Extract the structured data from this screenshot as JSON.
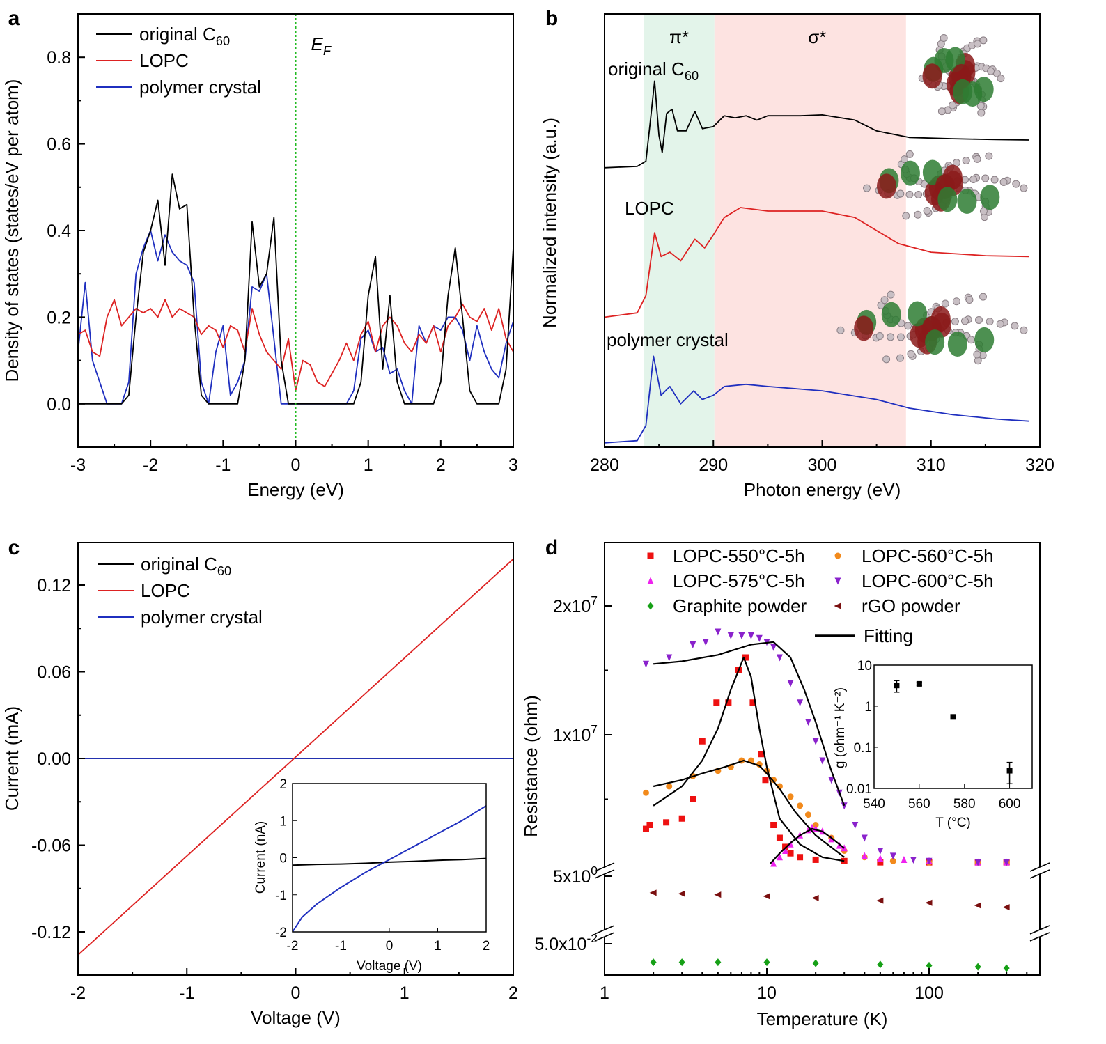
{
  "chart_data": [
    {
      "panel": "a",
      "type": "line",
      "xlabel": "Energy (eV)",
      "ylabel": "Density of states (states/eV per atom)",
      "xlim": [
        -3,
        3
      ],
      "ylim": [
        -0.1,
        0.9
      ],
      "xticks": [
        -3,
        -2,
        -1,
        0,
        1,
        2,
        3
      ],
      "yticks": [
        0.0,
        0.2,
        0.4,
        0.6,
        0.8
      ],
      "annotation": {
        "text": "E",
        "sub": "F",
        "x": 0
      },
      "fermi_line_color": "#22bb22",
      "legend_position": "top-left",
      "x": [
        -3.0,
        -2.9,
        -2.8,
        -2.7,
        -2.6,
        -2.5,
        -2.4,
        -2.3,
        -2.2,
        -2.1,
        -2.0,
        -1.9,
        -1.8,
        -1.7,
        -1.6,
        -1.5,
        -1.4,
        -1.3,
        -1.2,
        -1.1,
        -1.0,
        -0.9,
        -0.8,
        -0.7,
        -0.6,
        -0.5,
        -0.4,
        -0.3,
        -0.2,
        -0.1,
        0.0,
        0.1,
        0.2,
        0.3,
        0.4,
        0.5,
        0.6,
        0.7,
        0.8,
        0.9,
        1.0,
        1.1,
        1.2,
        1.3,
        1.4,
        1.5,
        1.6,
        1.7,
        1.8,
        1.9,
        2.0,
        2.1,
        2.2,
        2.3,
        2.4,
        2.5,
        2.6,
        2.7,
        2.8,
        2.9,
        3.0
      ],
      "series": [
        {
          "name": "original C",
          "sub": "60",
          "color": "#000000",
          "values": [
            0,
            0,
            0,
            0,
            0,
            0,
            0,
            0.02,
            0.2,
            0.35,
            0.4,
            0.47,
            0.32,
            0.53,
            0.45,
            0.46,
            0.2,
            0.02,
            0,
            0,
            0,
            0,
            0,
            0.1,
            0.42,
            0.27,
            0.3,
            0.43,
            0.1,
            0,
            0,
            0,
            0,
            0,
            0,
            0,
            0,
            0,
            0,
            0.05,
            0.25,
            0.34,
            0.08,
            0.25,
            0.05,
            0,
            0,
            0,
            0,
            0,
            0.05,
            0.25,
            0.36,
            0.2,
            0.03,
            0,
            0,
            0,
            0,
            0.08,
            0.36
          ]
        },
        {
          "name": "LOPC",
          "color": "#dd2222",
          "values": [
            0.16,
            0.17,
            0.12,
            0.11,
            0.2,
            0.24,
            0.18,
            0.2,
            0.22,
            0.21,
            0.22,
            0.2,
            0.24,
            0.2,
            0.22,
            0.21,
            0.2,
            0.16,
            0.18,
            0.17,
            0.13,
            0.18,
            0.17,
            0.12,
            0.22,
            0.16,
            0.12,
            0.1,
            0.08,
            0.15,
            0.03,
            0.1,
            0.09,
            0.05,
            0.04,
            0.07,
            0.1,
            0.14,
            0.1,
            0.16,
            0.19,
            0.12,
            0.18,
            0.2,
            0.18,
            0.14,
            0.12,
            0.16,
            0.14,
            0.18,
            0.12,
            0.18,
            0.2,
            0.23,
            0.2,
            0.19,
            0.22,
            0.17,
            0.22,
            0.15,
            0.12
          ]
        },
        {
          "name": "polymer crystal",
          "color": "#1f2fbf",
          "values": [
            0.12,
            0.28,
            0.1,
            0.05,
            0,
            0,
            0,
            0.05,
            0.3,
            0.36,
            0.4,
            0.33,
            0.39,
            0.35,
            0.33,
            0.32,
            0.28,
            0.05,
            0,
            0.12,
            0.18,
            0.02,
            0.05,
            0.1,
            0.27,
            0.26,
            0.3,
            0.15,
            0,
            0,
            0,
            0,
            0,
            0,
            0,
            0,
            0,
            0,
            0.03,
            0.15,
            0.17,
            0.12,
            0.13,
            0.07,
            0.08,
            0.03,
            0,
            0.18,
            0.14,
            0.18,
            0.17,
            0.2,
            0.2,
            0.17,
            0.1,
            0.18,
            0.12,
            0.08,
            0.06,
            0.14,
            0.19
          ]
        }
      ]
    },
    {
      "panel": "b",
      "type": "line",
      "xlabel": "Photon energy (eV)",
      "ylabel": "Normalized intensity (a.u.)",
      "xlim": [
        280,
        320
      ],
      "xticks": [
        280,
        290,
        300,
        310,
        320
      ],
      "yticks": [],
      "regions": [
        {
          "label": "π*",
          "from": 283.6,
          "to": 290.1,
          "color": "#e3f4ea"
        },
        {
          "label": "σ*",
          "from": 290.1,
          "to": 307.7,
          "color": "#fde3e1"
        }
      ],
      "series": [
        {
          "name": "original C",
          "sub": "60",
          "color": "#000000",
          "x": [
            280,
            283,
            283.8,
            284.2,
            284.6,
            285,
            285.3,
            285.7,
            286.2,
            286.7,
            287.5,
            288.3,
            289,
            290,
            291,
            292,
            293,
            294,
            295,
            298,
            300,
            303,
            305,
            308,
            312,
            316,
            319
          ],
          "values": [
            0.645,
            0.648,
            0.66,
            0.75,
            0.845,
            0.72,
            0.68,
            0.77,
            0.78,
            0.73,
            0.73,
            0.775,
            0.735,
            0.74,
            0.765,
            0.76,
            0.765,
            0.755,
            0.765,
            0.765,
            0.767,
            0.755,
            0.73,
            0.715,
            0.712,
            0.71,
            0.709
          ]
        },
        {
          "name": "LOPC",
          "color": "#dd2222",
          "x": [
            280,
            283,
            283.8,
            284.6,
            285.2,
            286,
            287,
            288.3,
            289.2,
            290,
            291,
            292.5,
            295,
            300,
            303,
            305,
            307,
            310,
            315,
            319
          ],
          "values": [
            0.3,
            0.31,
            0.35,
            0.495,
            0.44,
            0.45,
            0.43,
            0.48,
            0.46,
            0.49,
            0.53,
            0.553,
            0.545,
            0.545,
            0.53,
            0.5,
            0.47,
            0.45,
            0.442,
            0.44
          ]
        },
        {
          "name": "polymer crystal",
          "color": "#1f2fbf",
          "x": [
            280,
            283,
            283.8,
            284.5,
            285.2,
            286,
            287,
            288.2,
            289,
            290,
            291,
            293,
            295,
            300,
            305,
            308,
            312,
            316,
            319
          ],
          "values": [
            0.01,
            0.015,
            0.05,
            0.21,
            0.12,
            0.14,
            0.1,
            0.13,
            0.11,
            0.12,
            0.14,
            0.145,
            0.14,
            0.13,
            0.11,
            0.09,
            0.075,
            0.065,
            0.06
          ]
        }
      ]
    },
    {
      "panel": "c",
      "type": "line",
      "xlabel": "Voltage (V)",
      "ylabel": "Current (mA)",
      "xlim": [
        -2,
        2
      ],
      "ylim": [
        -0.15,
        0.15
      ],
      "xticks": [
        -2,
        -1,
        0,
        1,
        2
      ],
      "yticks": [
        -0.12,
        -0.06,
        0.0,
        0.06,
        0.12
      ],
      "ytick_labels": [
        "-0.12",
        "-0.06",
        "0.00",
        "0.06",
        "0.12"
      ],
      "legend_position": "top-left",
      "series": [
        {
          "name": "original C",
          "sub": "60",
          "color": "#000000",
          "x": [
            -2,
            2
          ],
          "values": [
            0,
            0
          ]
        },
        {
          "name": "LOPC",
          "color": "#dd2222",
          "x": [
            -2,
            2
          ],
          "values": [
            -0.136,
            0.138
          ]
        },
        {
          "name": "polymer crystal",
          "color": "#1f2fbf",
          "x": [
            -2,
            2
          ],
          "values": [
            0,
            0
          ]
        }
      ],
      "inset": {
        "type": "line",
        "xlabel": "Voltage (V)",
        "ylabel": "Current (nA)",
        "xlim": [
          -2,
          2
        ],
        "ylim": [
          -2,
          2
        ],
        "xticks": [
          -2,
          -1,
          0,
          1,
          2
        ],
        "yticks": [
          -2,
          -1,
          0,
          1,
          2
        ],
        "series": [
          {
            "color": "#000000",
            "x": [
              -2,
              -1.5,
              -1,
              -0.5,
              0,
              0.5,
              1,
              1.5,
              2
            ],
            "values": [
              -0.2,
              -0.18,
              -0.17,
              -0.15,
              -0.12,
              -0.1,
              -0.07,
              -0.05,
              -0.02
            ]
          },
          {
            "color": "#1f2fbf",
            "x": [
              -2,
              -1.8,
              -1.5,
              -1,
              -0.5,
              0,
              0.5,
              1,
              1.5,
              2
            ],
            "values": [
              -2,
              -1.6,
              -1.25,
              -0.8,
              -0.4,
              -0.05,
              0.3,
              0.65,
              1.0,
              1.4
            ]
          }
        ]
      }
    },
    {
      "panel": "d",
      "type": "scatter",
      "xlabel": "Temperature (K)",
      "ylabel": "Resistance (ohm)",
      "xscale": "log",
      "xlim": [
        1,
        480
      ],
      "xticks": [
        1,
        10,
        100
      ],
      "yaxis": "broken",
      "ytick_labels": [
        {
          "m": "2x10",
          "e": "7"
        },
        {
          "m": "1x10",
          "e": "7"
        },
        {
          "m": "5x10",
          "e": "0"
        },
        {
          "m": "5.0x10",
          "e": "-2"
        }
      ],
      "legend_position": "top",
      "fit_label": "Fitting",
      "series": [
        {
          "name": "LOPC-550°C-5h",
          "marker": "square",
          "color": "#ee1111",
          "x": [
            1.8,
            1.9,
            2.4,
            3,
            3.5,
            4,
            4.9,
            5.8,
            6.7,
            7.4,
            8.2,
            9.2,
            9.8,
            11,
            12,
            13,
            14,
            16,
            20,
            30,
            50,
            100,
            200,
            300
          ],
          "values": [
            0.27,
            0.3,
            0.32,
            0.35,
            0.5,
            0.95,
            1.25,
            1.25,
            1.5,
            1.6,
            1.25,
            0.85,
            0.65,
            0.3,
            0.2,
            0.13,
            0.08,
            0.05,
            0.03,
            0.02,
            0.01,
            0.01,
            0.01,
            0.01
          ]
        },
        {
          "name": "LOPC-560°C-5h",
          "marker": "circle",
          "color": "#f28a1c",
          "x": [
            1.8,
            2.5,
            3.5,
            5,
            6,
            7,
            8,
            9,
            10,
            11,
            12,
            14,
            16,
            18,
            20,
            25,
            30,
            40,
            60,
            100,
            200,
            300
          ],
          "values": [
            0.55,
            0.6,
            0.68,
            0.72,
            0.75,
            0.8,
            0.8,
            0.77,
            0.72,
            0.65,
            0.6,
            0.52,
            0.45,
            0.38,
            0.3,
            0.2,
            0.1,
            0.05,
            0.02,
            0.01,
            0.01,
            0.01
          ]
        },
        {
          "name": "LOPC-575°C-5h",
          "marker": "triangle-up",
          "color": "#ee22ee",
          "x": [
            11,
            12,
            13,
            14,
            16,
            18,
            19,
            20,
            22,
            25,
            28,
            30,
            40,
            50,
            70,
            100,
            200,
            300
          ],
          "values": [
            0.0,
            0.05,
            0.1,
            0.15,
            0.22,
            0.26,
            0.28,
            0.27,
            0.25,
            0.19,
            0.14,
            0.12,
            0.06,
            0.04,
            0.03,
            0.02,
            0.01,
            0.01
          ]
        },
        {
          "name": "LOPC-600°C-5h",
          "marker": "triangle-down",
          "color": "#8a22cc",
          "x": [
            1.8,
            2.5,
            3.5,
            4.2,
            5,
            6,
            7,
            8,
            9,
            10,
            11,
            12,
            14,
            16,
            18,
            20,
            22,
            25,
            28,
            30,
            35,
            40,
            50,
            60,
            80,
            100,
            200,
            300
          ],
          "values": [
            1.55,
            1.6,
            1.7,
            1.72,
            1.8,
            1.77,
            1.77,
            1.77,
            1.75,
            1.72,
            1.68,
            1.6,
            1.4,
            1.25,
            1.1,
            0.95,
            0.8,
            0.65,
            0.55,
            0.45,
            0.3,
            0.2,
            0.1,
            0.06,
            0.03,
            0.02,
            0.01,
            0.01
          ]
        },
        {
          "name": "Graphite powder",
          "marker": "diamond",
          "color": "#16a016",
          "segment": "lower",
          "x": [
            2,
            3,
            5,
            10,
            20,
            50,
            100,
            200,
            300
          ],
          "values": [
            0.018,
            0.018,
            0.018,
            0.018,
            0.017,
            0.016,
            0.015,
            0.014,
            0.013
          ]
        },
        {
          "name": "rGO powder",
          "marker": "triangle-left",
          "color": "#7a0f0f",
          "segment": "middle",
          "x": [
            2,
            3,
            5,
            10,
            20,
            50,
            100,
            200,
            300
          ],
          "values": [
            2.0,
            1.9,
            1.8,
            1.65,
            1.5,
            1.3,
            1.15,
            1.0,
            0.9
          ]
        }
      ],
      "fits": [
        {
          "for": "LOPC-600°C-5h",
          "x": [
            2,
            3,
            5,
            8,
            11,
            14,
            17,
            20,
            25,
            30
          ],
          "values": [
            1.55,
            1.57,
            1.62,
            1.7,
            1.72,
            1.6,
            1.35,
            1.1,
            0.72,
            0.45
          ]
        },
        {
          "for": "LOPC-550°C-5h",
          "x": [
            2,
            3,
            4,
            5,
            6,
            7.2,
            8,
            9,
            10,
            12,
            16,
            22,
            30
          ],
          "values": [
            0.45,
            0.6,
            0.8,
            1.05,
            1.35,
            1.6,
            1.45,
            1.05,
            0.75,
            0.35,
            0.15,
            0.05,
            0.02
          ]
        },
        {
          "for": "LOPC-560°C-5h",
          "x": [
            2,
            3,
            4,
            5.5,
            7.2,
            9,
            10,
            12,
            15,
            20,
            30
          ],
          "values": [
            0.6,
            0.65,
            0.7,
            0.75,
            0.8,
            0.76,
            0.7,
            0.58,
            0.4,
            0.22,
            0.05
          ]
        },
        {
          "for": "LOPC-575°C-5h",
          "x": [
            10.5,
            12,
            14,
            16,
            19,
            22,
            25,
            30
          ],
          "values": [
            0.0,
            0.08,
            0.16,
            0.22,
            0.27,
            0.25,
            0.2,
            0.12
          ]
        }
      ],
      "inset": {
        "type": "scatter",
        "xlabel": "T (°C)",
        "ylabel": "g (ohm⁻¹ K⁻²)",
        "xlim": [
          540,
          610
        ],
        "ylim": [
          0.01,
          10
        ],
        "yscale": "log",
        "xticks": [
          540,
          560,
          580,
          600
        ],
        "yticks": [
          0.01,
          0.1,
          1,
          10
        ],
        "ytick_labels": [
          "0.01",
          "0.1",
          "1",
          "10"
        ],
        "points": [
          {
            "x": 550,
            "y": 3.2,
            "err_low": 2.2,
            "err_high": 4.2
          },
          {
            "x": 560,
            "y": 3.5,
            "err_low": 3.2,
            "err_high": 3.8
          },
          {
            "x": 575,
            "y": 0.55,
            "err_low": 0.52,
            "err_high": 0.58
          },
          {
            "x": 600,
            "y": 0.027,
            "err_low": 0.013,
            "err_high": 0.043
          }
        ]
      }
    }
  ]
}
